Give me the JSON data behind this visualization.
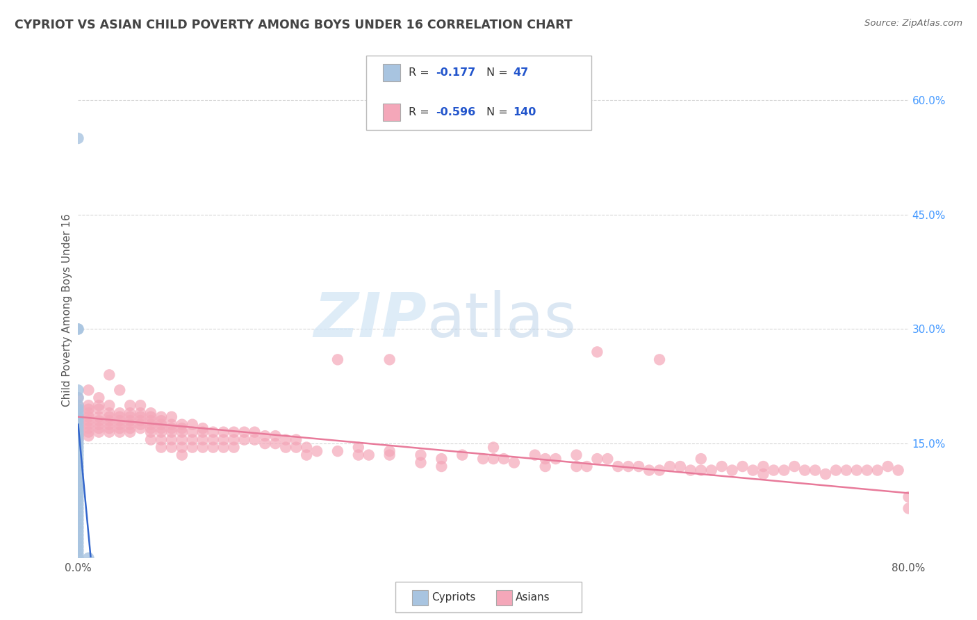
{
  "title": "CYPRIOT VS ASIAN CHILD POVERTY AMONG BOYS UNDER 16 CORRELATION CHART",
  "source": "Source: ZipAtlas.com",
  "ylabel": "Child Poverty Among Boys Under 16",
  "xlim": [
    0.0,
    0.8
  ],
  "ylim": [
    0.0,
    0.65
  ],
  "x_ticks": [
    0.0,
    0.8
  ],
  "x_tick_labels": [
    "0.0%",
    "80.0%"
  ],
  "y_tick_labels_right": [
    "15.0%",
    "30.0%",
    "45.0%",
    "60.0%"
  ],
  "y_ticks_right": [
    0.15,
    0.3,
    0.45,
    0.6
  ],
  "cypriot_color": "#a8c4e0",
  "asian_color": "#f4a7b9",
  "cypriot_line_color": "#3366cc",
  "asian_line_color": "#e87a9a",
  "background_color": "#ffffff",
  "grid_color": "#cccccc",
  "axis_label_color": "#555555",
  "right_tick_color": "#4499ff",
  "cypriot_points": [
    [
      0.0,
      0.55
    ],
    [
      0.0,
      0.3
    ],
    [
      0.0,
      0.3
    ],
    [
      0.0,
      0.22
    ],
    [
      0.0,
      0.21
    ],
    [
      0.0,
      0.2
    ],
    [
      0.0,
      0.195
    ],
    [
      0.0,
      0.19
    ],
    [
      0.0,
      0.185
    ],
    [
      0.0,
      0.18
    ],
    [
      0.0,
      0.175
    ],
    [
      0.0,
      0.17
    ],
    [
      0.0,
      0.165
    ],
    [
      0.0,
      0.16
    ],
    [
      0.0,
      0.155
    ],
    [
      0.0,
      0.15
    ],
    [
      0.0,
      0.145
    ],
    [
      0.0,
      0.14
    ],
    [
      0.0,
      0.135
    ],
    [
      0.0,
      0.13
    ],
    [
      0.0,
      0.125
    ],
    [
      0.0,
      0.12
    ],
    [
      0.0,
      0.115
    ],
    [
      0.0,
      0.11
    ],
    [
      0.0,
      0.105
    ],
    [
      0.0,
      0.1
    ],
    [
      0.0,
      0.095
    ],
    [
      0.0,
      0.09
    ],
    [
      0.0,
      0.085
    ],
    [
      0.0,
      0.08
    ],
    [
      0.0,
      0.075
    ],
    [
      0.0,
      0.07
    ],
    [
      0.0,
      0.065
    ],
    [
      0.0,
      0.06
    ],
    [
      0.0,
      0.055
    ],
    [
      0.0,
      0.05
    ],
    [
      0.0,
      0.045
    ],
    [
      0.0,
      0.04
    ],
    [
      0.0,
      0.035
    ],
    [
      0.0,
      0.03
    ],
    [
      0.0,
      0.025
    ],
    [
      0.0,
      0.02
    ],
    [
      0.0,
      0.015
    ],
    [
      0.0,
      0.01
    ],
    [
      0.0,
      0.005
    ],
    [
      0.0,
      0.0
    ],
    [
      0.01,
      0.0
    ]
  ],
  "asian_points": [
    [
      0.0,
      0.21
    ],
    [
      0.0,
      0.2
    ],
    [
      0.0,
      0.195
    ],
    [
      0.0,
      0.185
    ],
    [
      0.0,
      0.18
    ],
    [
      0.0,
      0.175
    ],
    [
      0.0,
      0.17
    ],
    [
      0.0,
      0.165
    ],
    [
      0.0,
      0.16
    ],
    [
      0.0,
      0.155
    ],
    [
      0.01,
      0.22
    ],
    [
      0.01,
      0.2
    ],
    [
      0.01,
      0.195
    ],
    [
      0.01,
      0.19
    ],
    [
      0.01,
      0.185
    ],
    [
      0.01,
      0.18
    ],
    [
      0.01,
      0.175
    ],
    [
      0.01,
      0.17
    ],
    [
      0.01,
      0.165
    ],
    [
      0.01,
      0.16
    ],
    [
      0.02,
      0.21
    ],
    [
      0.02,
      0.2
    ],
    [
      0.02,
      0.195
    ],
    [
      0.02,
      0.185
    ],
    [
      0.02,
      0.18
    ],
    [
      0.02,
      0.175
    ],
    [
      0.02,
      0.17
    ],
    [
      0.02,
      0.165
    ],
    [
      0.03,
      0.24
    ],
    [
      0.03,
      0.2
    ],
    [
      0.03,
      0.19
    ],
    [
      0.03,
      0.185
    ],
    [
      0.03,
      0.18
    ],
    [
      0.03,
      0.175
    ],
    [
      0.03,
      0.17
    ],
    [
      0.03,
      0.165
    ],
    [
      0.04,
      0.22
    ],
    [
      0.04,
      0.19
    ],
    [
      0.04,
      0.185
    ],
    [
      0.04,
      0.18
    ],
    [
      0.04,
      0.175
    ],
    [
      0.04,
      0.17
    ],
    [
      0.04,
      0.165
    ],
    [
      0.05,
      0.2
    ],
    [
      0.05,
      0.19
    ],
    [
      0.05,
      0.185
    ],
    [
      0.05,
      0.18
    ],
    [
      0.05,
      0.175
    ],
    [
      0.05,
      0.17
    ],
    [
      0.05,
      0.165
    ],
    [
      0.06,
      0.2
    ],
    [
      0.06,
      0.19
    ],
    [
      0.06,
      0.185
    ],
    [
      0.06,
      0.18
    ],
    [
      0.06,
      0.175
    ],
    [
      0.06,
      0.17
    ],
    [
      0.07,
      0.19
    ],
    [
      0.07,
      0.185
    ],
    [
      0.07,
      0.18
    ],
    [
      0.07,
      0.175
    ],
    [
      0.07,
      0.17
    ],
    [
      0.07,
      0.165
    ],
    [
      0.07,
      0.155
    ],
    [
      0.08,
      0.185
    ],
    [
      0.08,
      0.18
    ],
    [
      0.08,
      0.175
    ],
    [
      0.08,
      0.17
    ],
    [
      0.08,
      0.165
    ],
    [
      0.08,
      0.155
    ],
    [
      0.08,
      0.145
    ],
    [
      0.09,
      0.185
    ],
    [
      0.09,
      0.175
    ],
    [
      0.09,
      0.17
    ],
    [
      0.09,
      0.165
    ],
    [
      0.09,
      0.155
    ],
    [
      0.09,
      0.145
    ],
    [
      0.1,
      0.175
    ],
    [
      0.1,
      0.17
    ],
    [
      0.1,
      0.165
    ],
    [
      0.1,
      0.155
    ],
    [
      0.1,
      0.145
    ],
    [
      0.1,
      0.135
    ],
    [
      0.11,
      0.175
    ],
    [
      0.11,
      0.165
    ],
    [
      0.11,
      0.155
    ],
    [
      0.11,
      0.145
    ],
    [
      0.12,
      0.17
    ],
    [
      0.12,
      0.165
    ],
    [
      0.12,
      0.155
    ],
    [
      0.12,
      0.145
    ],
    [
      0.13,
      0.165
    ],
    [
      0.13,
      0.155
    ],
    [
      0.13,
      0.145
    ],
    [
      0.14,
      0.165
    ],
    [
      0.14,
      0.155
    ],
    [
      0.14,
      0.145
    ],
    [
      0.15,
      0.165
    ],
    [
      0.15,
      0.155
    ],
    [
      0.15,
      0.145
    ],
    [
      0.16,
      0.165
    ],
    [
      0.16,
      0.155
    ],
    [
      0.17,
      0.165
    ],
    [
      0.17,
      0.155
    ],
    [
      0.18,
      0.16
    ],
    [
      0.18,
      0.15
    ],
    [
      0.19,
      0.16
    ],
    [
      0.19,
      0.15
    ],
    [
      0.2,
      0.155
    ],
    [
      0.2,
      0.145
    ],
    [
      0.21,
      0.155
    ],
    [
      0.21,
      0.145
    ],
    [
      0.22,
      0.145
    ],
    [
      0.22,
      0.135
    ],
    [
      0.23,
      0.14
    ],
    [
      0.25,
      0.26
    ],
    [
      0.25,
      0.14
    ],
    [
      0.27,
      0.145
    ],
    [
      0.27,
      0.135
    ],
    [
      0.28,
      0.135
    ],
    [
      0.3,
      0.26
    ],
    [
      0.3,
      0.14
    ],
    [
      0.3,
      0.135
    ],
    [
      0.33,
      0.135
    ],
    [
      0.33,
      0.125
    ],
    [
      0.35,
      0.13
    ],
    [
      0.35,
      0.12
    ],
    [
      0.37,
      0.135
    ],
    [
      0.39,
      0.13
    ],
    [
      0.4,
      0.145
    ],
    [
      0.4,
      0.13
    ],
    [
      0.41,
      0.13
    ],
    [
      0.42,
      0.125
    ],
    [
      0.44,
      0.135
    ],
    [
      0.45,
      0.13
    ],
    [
      0.45,
      0.12
    ],
    [
      0.46,
      0.13
    ],
    [
      0.48,
      0.135
    ],
    [
      0.48,
      0.12
    ],
    [
      0.49,
      0.12
    ],
    [
      0.5,
      0.27
    ],
    [
      0.5,
      0.13
    ],
    [
      0.51,
      0.13
    ],
    [
      0.52,
      0.12
    ],
    [
      0.53,
      0.12
    ],
    [
      0.54,
      0.12
    ],
    [
      0.55,
      0.115
    ],
    [
      0.56,
      0.26
    ],
    [
      0.56,
      0.115
    ],
    [
      0.57,
      0.12
    ],
    [
      0.58,
      0.12
    ],
    [
      0.59,
      0.115
    ],
    [
      0.6,
      0.13
    ],
    [
      0.6,
      0.115
    ],
    [
      0.61,
      0.115
    ],
    [
      0.62,
      0.12
    ],
    [
      0.63,
      0.115
    ],
    [
      0.64,
      0.12
    ],
    [
      0.65,
      0.115
    ],
    [
      0.66,
      0.12
    ],
    [
      0.66,
      0.11
    ],
    [
      0.67,
      0.115
    ],
    [
      0.68,
      0.115
    ],
    [
      0.69,
      0.12
    ],
    [
      0.7,
      0.115
    ],
    [
      0.71,
      0.115
    ],
    [
      0.72,
      0.11
    ],
    [
      0.73,
      0.115
    ],
    [
      0.74,
      0.115
    ],
    [
      0.75,
      0.115
    ],
    [
      0.76,
      0.115
    ],
    [
      0.77,
      0.115
    ],
    [
      0.78,
      0.12
    ],
    [
      0.79,
      0.115
    ],
    [
      0.8,
      0.065
    ],
    [
      0.8,
      0.08
    ]
  ],
  "cypriot_line_x": [
    0.0,
    0.01
  ],
  "cypriot_line_y_start": 0.175,
  "cypriot_line_y_end": 0.005,
  "asian_line_x_start": 0.0,
  "asian_line_x_end": 0.8,
  "asian_line_y_start": 0.185,
  "asian_line_y_end": 0.085
}
